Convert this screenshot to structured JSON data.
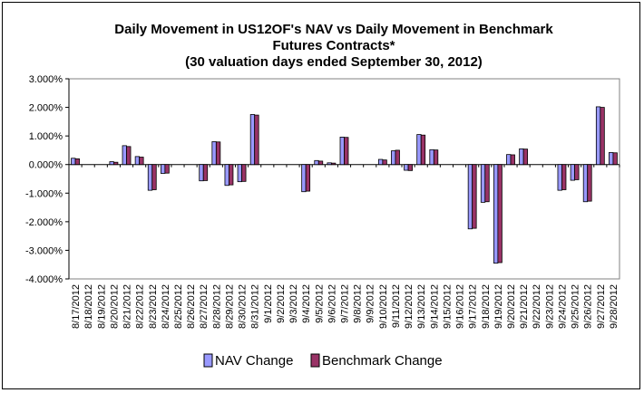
{
  "chart_data": {
    "type": "bar",
    "title": "Daily Movement in US12OF's NAV vs Daily Movement in Benchmark",
    "title_lines": [
      "Daily Movement in US12OF's NAV vs Daily Movement in Benchmark",
      "Futures Contracts*",
      "(30 valuation days ended September 30, 2012)"
    ],
    "categories": [
      "8/17/2012",
      "8/18/2012",
      "8/19/2012",
      "8/20/2012",
      "8/21/2012",
      "8/22/2012",
      "8/23/2012",
      "8/24/2012",
      "8/25/2012",
      "8/26/2012",
      "8/27/2012",
      "8/28/2012",
      "8/29/2012",
      "8/30/2012",
      "8/31/2012",
      "9/1/2012",
      "9/2/2012",
      "9/3/2012",
      "9/4/2012",
      "9/5/2012",
      "9/6/2012",
      "9/7/2012",
      "9/8/2012",
      "9/9/2012",
      "9/10/2012",
      "9/11/2012",
      "9/12/2012",
      "9/13/2012",
      "9/14/2012",
      "9/15/2012",
      "9/16/2012",
      "9/17/2012",
      "9/18/2012",
      "9/19/2012",
      "9/20/2012",
      "9/21/2012",
      "9/22/2012",
      "9/23/2012",
      "9/24/2012",
      "9/25/2012",
      "9/26/2012",
      "9/27/2012",
      "9/28/2012"
    ],
    "series": [
      {
        "name": "NAV Change",
        "color": "#9999ff",
        "values": [
          0.22,
          null,
          null,
          0.1,
          0.66,
          0.28,
          -0.9,
          -0.31,
          null,
          null,
          -0.57,
          0.8,
          -0.73,
          -0.6,
          1.75,
          null,
          null,
          null,
          -0.95,
          0.14,
          0.06,
          0.96,
          null,
          null,
          0.18,
          0.48,
          -0.2,
          1.05,
          0.52,
          null,
          null,
          -2.25,
          -1.32,
          -3.45,
          0.35,
          0.55,
          null,
          null,
          -0.9,
          -0.55,
          -1.3,
          2.02,
          0.42
        ]
      },
      {
        "name": "Benchmark Change",
        "color": "#993366",
        "values": [
          0.2,
          null,
          null,
          0.08,
          0.63,
          0.26,
          -0.88,
          -0.3,
          null,
          null,
          -0.56,
          0.79,
          -0.71,
          -0.59,
          1.73,
          null,
          null,
          null,
          -0.93,
          0.12,
          0.05,
          0.95,
          null,
          null,
          0.16,
          0.5,
          -0.21,
          1.03,
          0.51,
          null,
          null,
          -2.23,
          -1.3,
          -3.43,
          0.34,
          0.54,
          null,
          null,
          -0.88,
          -0.53,
          -1.28,
          2.0,
          0.41
        ]
      }
    ],
    "ylim": [
      -4,
      3
    ],
    "yticks": [
      "3.000%",
      "2.000%",
      "1.000%",
      "0.000%",
      "-1.000%",
      "-2.000%",
      "-3.000%",
      "-4.000%"
    ],
    "ytick_values": [
      3,
      2,
      1,
      0,
      -1,
      -2,
      -3,
      -4
    ],
    "xlabel": "",
    "ylabel": "",
    "grid": false,
    "legend": "bottom"
  }
}
